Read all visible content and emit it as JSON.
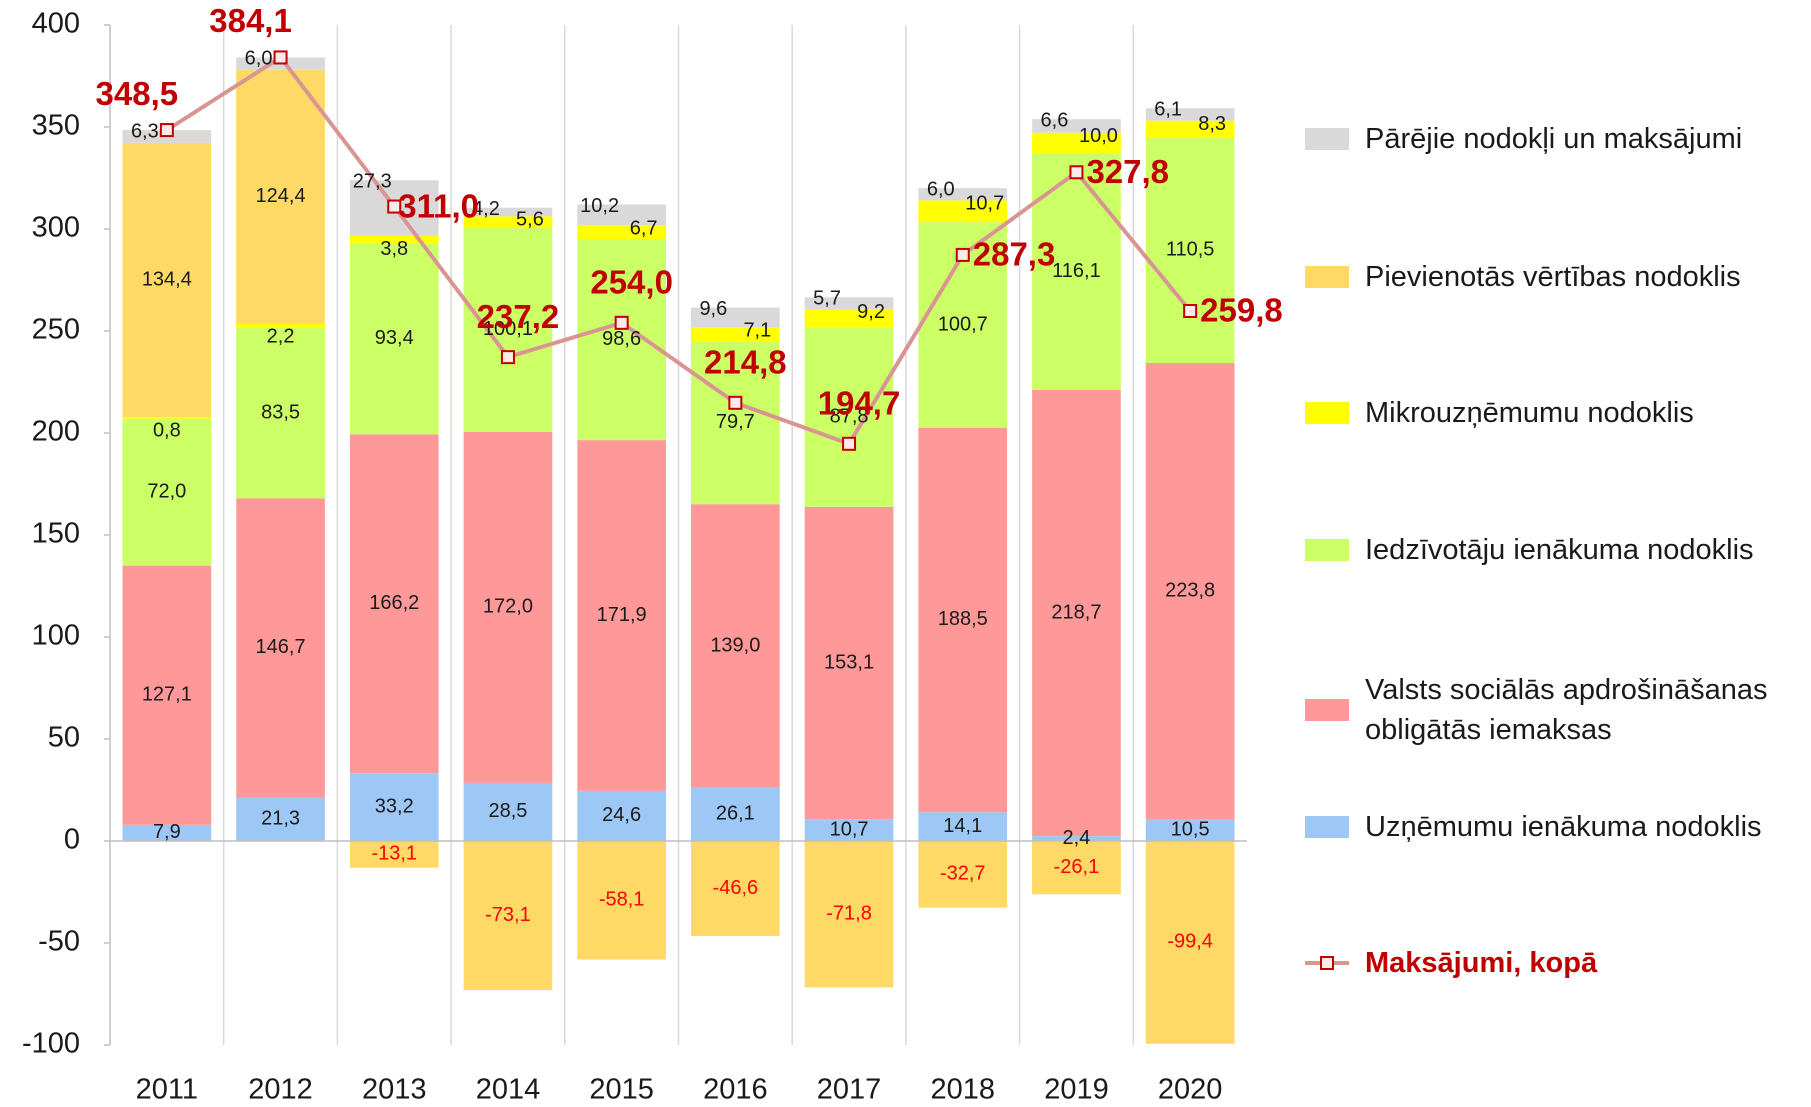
{
  "chart_data": {
    "type": "bar",
    "stacked": true,
    "categories": [
      "2011",
      "2012",
      "2013",
      "2014",
      "2015",
      "2016",
      "2017",
      "2018",
      "2019",
      "2020"
    ],
    "series": [
      {
        "name": "Uzņēmumu ienākuma nodoklis",
        "color": "#9dc8f5",
        "values": [
          7.9,
          21.3,
          33.2,
          28.5,
          24.6,
          26.1,
          10.7,
          14.1,
          2.4,
          10.5
        ],
        "value_labels": [
          "7,9",
          "21,3",
          "33,2",
          "28,5",
          "24,6",
          "26,1",
          "10,7",
          "14,1",
          "2,4",
          "10,5"
        ]
      },
      {
        "name": "Valsts sociālās apdrošināšanas obligātās iemaksas",
        "color": "#ff9999",
        "values": [
          127.1,
          146.7,
          166.2,
          172.0,
          171.9,
          139.0,
          153.1,
          188.5,
          218.7,
          223.8
        ],
        "value_labels": [
          "127,1",
          "146,7",
          "166,2",
          "172,0",
          "171,9",
          "139,0",
          "153,1",
          "188,5",
          "218,7",
          "223,8"
        ]
      },
      {
        "name": "Iedzīvotāju ienākuma nodoklis",
        "color": "#ccff66",
        "values": [
          72.0,
          83.5,
          93.4,
          100.1,
          98.6,
          79.7,
          87.8,
          100.7,
          116.1,
          110.5
        ],
        "value_labels": [
          "72,0",
          "83,5",
          "93,4",
          "100,1",
          "98,6",
          "79,7",
          "87,8",
          "100,7",
          "116,1",
          "110,5"
        ]
      },
      {
        "name": "Mikrouzņēmumu nodoklis",
        "color": "#ffff00",
        "values": [
          0.8,
          2.2,
          3.8,
          5.6,
          6.7,
          7.1,
          9.2,
          10.7,
          10.0,
          8.3
        ],
        "value_labels": [
          "0,8",
          "2,2",
          "3,8",
          "5,6",
          "6,7",
          "7,1",
          "9,2",
          "10,7",
          "10,0",
          "8,3"
        ]
      },
      {
        "name": "Pievienotās vērtības nodoklis",
        "color": "#ffd966",
        "values": [
          134.4,
          124.4,
          -13.1,
          -73.1,
          -58.1,
          -46.6,
          -71.8,
          -32.7,
          -26.1,
          -99.4
        ],
        "value_labels": [
          "134,4",
          "124,4",
          "-13,1",
          "-73,1",
          "-58,1",
          "-46,6",
          "-71,8",
          "-32,7",
          "-26,1",
          "-99,4"
        ]
      },
      {
        "name": "Pārējie nodokļi un maksājumi",
        "color": "#d9d9d9",
        "values": [
          6.3,
          6.0,
          27.3,
          4.2,
          10.2,
          9.6,
          5.7,
          6.0,
          6.6,
          6.1
        ],
        "value_labels": [
          "6,3",
          "6,0",
          "27,3",
          "4,2",
          "10,2",
          "9,6",
          "5,7",
          "6,0",
          "6,6",
          "6,1"
        ]
      }
    ],
    "line": {
      "name": "Maksājumi, kopā",
      "color": "#d99594",
      "marker_color": "#c00000",
      "values": [
        348.5,
        384.1,
        311.0,
        237.2,
        254.0,
        214.8,
        194.7,
        287.3,
        327.8,
        259.8
      ],
      "value_labels": [
        "348,5",
        "384,1",
        "311,0",
        "237,2",
        "254,0",
        "214,8",
        "194,7",
        "287,3",
        "327,8",
        "259,8"
      ]
    },
    "ylim": [
      -100,
      400
    ],
    "yticks": [
      -100,
      -50,
      0,
      50,
      100,
      150,
      200,
      250,
      300,
      350,
      400
    ],
    "legend": "right"
  }
}
